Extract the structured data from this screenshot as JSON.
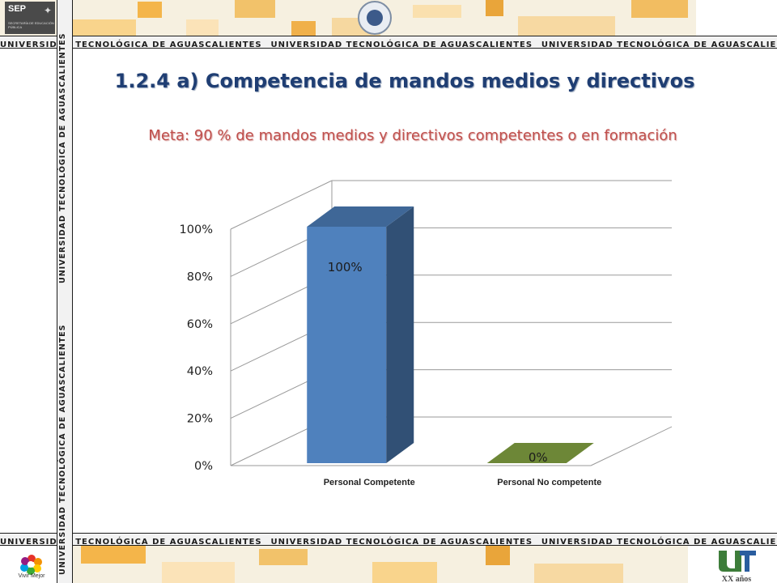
{
  "header": {
    "stripe_text": "UNIVERSIDAD TECNOLÓGICA DE AGUASCALIENTES",
    "side_text": "UNIVERSIDAD TECNOLÓGICA DE AGUASCALIENTES",
    "sep_logo": {
      "word": "SEP",
      "sub": "SECRETARÍA DE EDUCACIÓN PÚBLICA"
    }
  },
  "footer": {
    "vivir_logo": "Vivir Mejor",
    "ut_logo": "XX años"
  },
  "title": "1.2.4 a) Competencia de mandos medios y directivos",
  "subtitle": "Meta: 90 % de mandos medios y directivos competentes o en formación",
  "colors": {
    "title": "#1f3e73",
    "subtitle": "#c0504d",
    "bar_competente": "#4f81bd",
    "bar_no_competente": "#77933c"
  },
  "chart_data": {
    "type": "bar",
    "style": "3d-column",
    "categories": [
      "Personal Competente",
      "Personal No competente"
    ],
    "values": [
      100,
      0
    ],
    "data_labels": [
      "100%",
      "0%"
    ],
    "y_ticks": [
      "0%",
      "20%",
      "40%",
      "60%",
      "80%",
      "100%"
    ],
    "ylim": [
      0,
      100
    ],
    "grid": true,
    "legend": "none"
  }
}
